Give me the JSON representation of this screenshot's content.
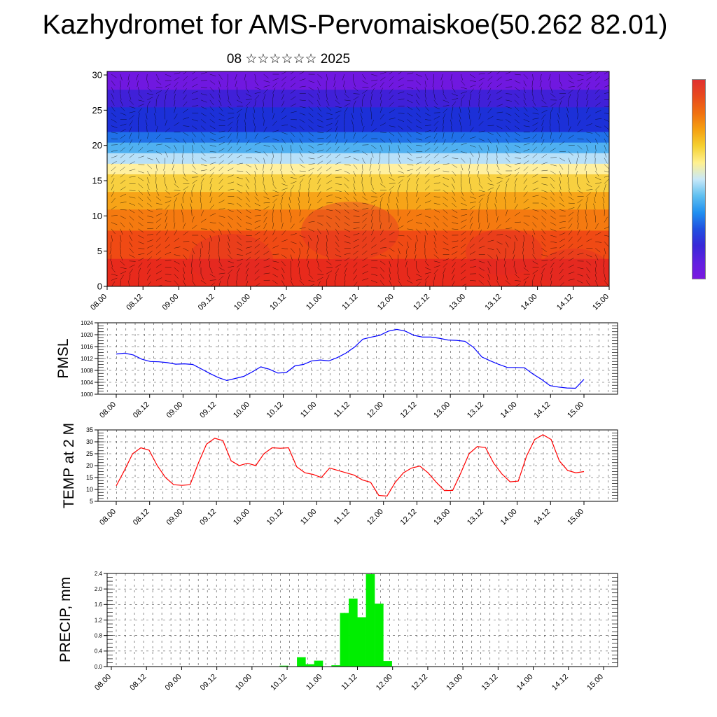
{
  "title": "Kazhydromet for AMS-Pervomaiskoe(50.262 82.01)",
  "subtitle": "08 ☆☆☆☆☆☆ 2025",
  "time_labels": [
    "08.00",
    "08.12",
    "09.00",
    "09.12",
    "10.00",
    "10.12",
    "11.00",
    "11.12",
    "12.00",
    "12.12",
    "13.00",
    "13.12",
    "14.00",
    "14.12",
    "15.00"
  ],
  "colorbar": {
    "colors": [
      "#e03030",
      "#e84a1e",
      "#f07010",
      "#f5a010",
      "#f5d030",
      "#fff090",
      "#c8e8f8",
      "#60c0f0",
      "#2090f0",
      "#2050e0",
      "#3828d8",
      "#6020e0",
      "#7a18e0"
    ]
  },
  "chart_data": [
    {
      "type": "heatmap",
      "panel": "cross-section",
      "title": "",
      "xlabel": "",
      "ylabel": "",
      "ylim": [
        0,
        30
      ],
      "yticks": [
        0,
        5,
        10,
        15,
        20,
        25,
        30
      ],
      "layers": [
        {
          "y0": 0,
          "y1": 4,
          "color": "#e82a1c"
        },
        {
          "y0": 4,
          "y1": 8,
          "color": "#f04a14"
        },
        {
          "y0": 8,
          "y1": 11,
          "color": "#f57a10"
        },
        {
          "y0": 11,
          "y1": 13.5,
          "color": "#f7a418"
        },
        {
          "y0": 13.5,
          "y1": 16,
          "color": "#f8d040"
        },
        {
          "y0": 16,
          "y1": 17.5,
          "color": "#fff0a0"
        },
        {
          "y0": 17.5,
          "y1": 19,
          "color": "#b8e0f8"
        },
        {
          "y0": 19,
          "y1": 20.5,
          "color": "#50b0f0"
        },
        {
          "y0": 20.5,
          "y1": 22,
          "color": "#2070e8"
        },
        {
          "y0": 22,
          "y1": 25.5,
          "color": "#1c30d8"
        },
        {
          "y0": 25.5,
          "y1": 28,
          "color": "#4020d8"
        },
        {
          "y0": 28,
          "y1": 31,
          "color": "#7018e0"
        }
      ]
    },
    {
      "type": "line",
      "ylabel": "PMSL",
      "ylim": [
        1000,
        1024
      ],
      "yticks": [
        1000,
        1004,
        1008,
        1012,
        1016,
        1020,
        1024
      ],
      "series": [
        {
          "color": "#0000ff",
          "values": [
            1013.5,
            1013.8,
            1013.2,
            1011.8,
            1011,
            1010.9,
            1010.6,
            1010.1,
            1010.2,
            1010,
            1008.5,
            1007,
            1005.6,
            1004.6,
            1005.3,
            1006,
            1007.5,
            1009.2,
            1008.4,
            1007.1,
            1007.3,
            1009.5,
            1010,
            1011.2,
            1011.5,
            1011.2,
            1012.3,
            1013.8,
            1015.8,
            1018.5,
            1019.2,
            1019.8,
            1021.2,
            1021.8,
            1021.2,
            1019.8,
            1019.2,
            1019.2,
            1018.8,
            1018.2,
            1018.1,
            1017.8,
            1015.8,
            1012.5,
            1011.2,
            1010,
            1009,
            1009,
            1008.9,
            1006.8,
            1005,
            1002.9,
            1002.4,
            1002.1,
            1002,
            1005
          ]
        }
      ]
    },
    {
      "type": "line",
      "ylabel": "TEMP at 2 M",
      "ylim": [
        5,
        35
      ],
      "yticks": [
        5,
        10,
        15,
        20,
        25,
        30,
        35
      ],
      "series": [
        {
          "color": "#ff0000",
          "values": [
            11.5,
            18,
            25,
            27.5,
            26.5,
            20,
            15,
            12,
            11.7,
            12,
            21,
            29,
            31.5,
            30.5,
            22,
            20,
            21,
            20,
            25,
            27.5,
            27.3,
            27.5,
            19.5,
            17,
            16.3,
            15,
            19,
            18,
            17,
            16,
            14,
            13,
            7.5,
            7.2,
            13,
            17,
            19,
            19.8,
            17,
            13,
            9.5,
            9.6,
            17,
            25,
            28,
            27.6,
            21,
            16.5,
            13.2,
            13.5,
            24,
            31,
            33,
            31,
            22,
            18,
            17,
            17.5
          ]
        }
      ]
    },
    {
      "type": "bar",
      "ylabel": "PRECIP, mm",
      "ylim": [
        0,
        2.4
      ],
      "yticks": [
        0.0,
        0.4,
        0.8,
        1.2,
        1.6,
        2.0,
        2.4
      ],
      "bar_color": "#00ee00",
      "values": [
        0,
        0,
        0,
        0,
        0,
        0,
        0,
        0,
        0,
        0,
        0,
        0,
        0,
        0,
        0,
        0,
        0,
        0,
        0,
        0,
        0.02,
        0,
        0.24,
        0.06,
        0.15,
        0,
        0.03,
        1.38,
        1.75,
        1.27,
        2.38,
        1.62,
        0.14,
        0,
        0,
        0,
        0,
        0,
        0,
        0,
        0,
        0,
        0,
        0,
        0,
        0,
        0,
        0,
        0,
        0,
        0,
        0,
        0,
        0,
        0,
        0,
        0,
        0
      ]
    }
  ]
}
